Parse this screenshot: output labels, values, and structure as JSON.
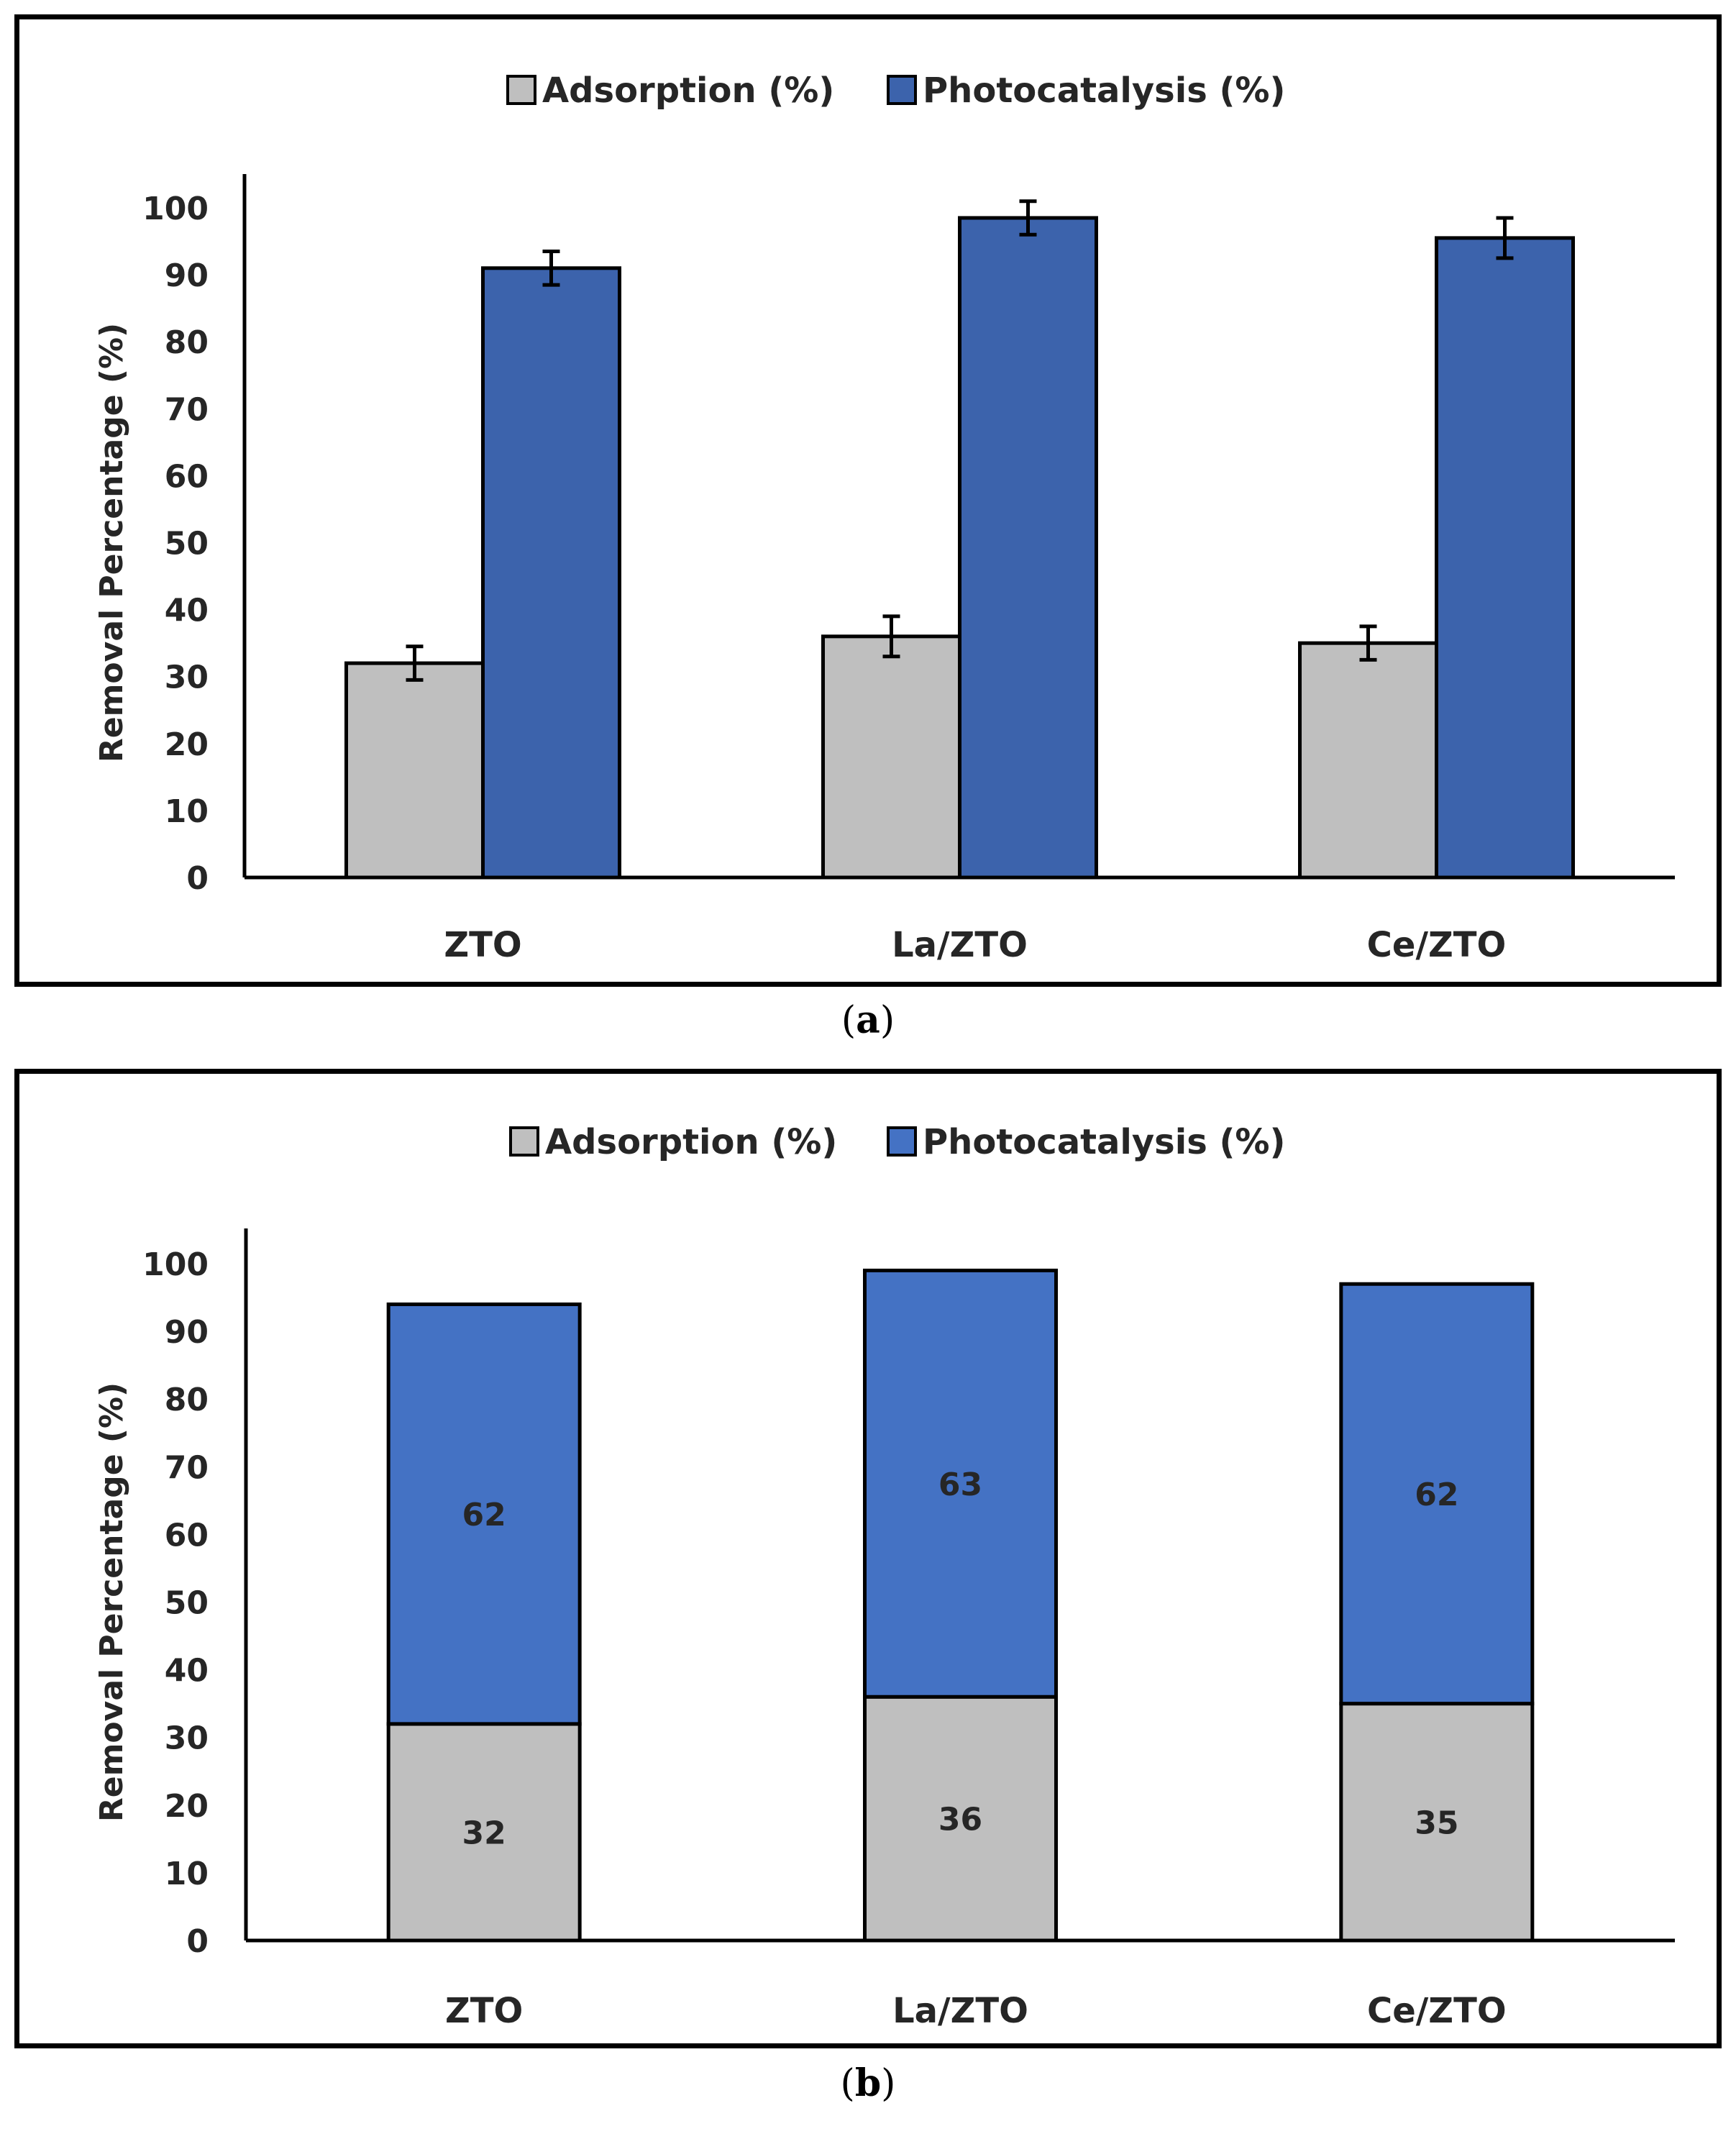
{
  "chart_data": [
    {
      "id": "a",
      "type": "bar",
      "mode": "grouped",
      "caption": "a",
      "categories": [
        "ZTO",
        "La/ZTO",
        "Ce/ZTO"
      ],
      "series": [
        {
          "name": "Adsorption (%)",
          "color": "#bfbfbf",
          "values": [
            32,
            36,
            35
          ],
          "errors": [
            2.5,
            3,
            2.5
          ]
        },
        {
          "name": "Photocatalysis (%)",
          "color": "#3c63ac",
          "values": [
            91,
            98.5,
            95.5
          ],
          "errors": [
            2.5,
            2.5,
            3
          ]
        }
      ],
      "ylabel": "Removal Percentage (%)",
      "xlabel": "",
      "ylim": [
        0,
        100
      ],
      "yticks": [
        0,
        10,
        20,
        30,
        40,
        50,
        60,
        70,
        80,
        90,
        100
      ],
      "legend": "top-center",
      "grid": false
    },
    {
      "id": "b",
      "type": "bar",
      "mode": "stacked",
      "caption": "b",
      "categories": [
        "ZTO",
        "La/ZTO",
        "Ce/ZTO"
      ],
      "series": [
        {
          "name": "Adsorption (%)",
          "color": "#bfbfbf",
          "values": [
            32,
            36,
            35
          ],
          "labels": [
            "32",
            "36",
            "35"
          ]
        },
        {
          "name": "Photocatalysis (%)",
          "color": "#4472c4",
          "values": [
            62,
            63,
            62
          ],
          "labels": [
            "62",
            "63",
            "62"
          ]
        }
      ],
      "ylabel": "Removal Percentage (%)",
      "xlabel": "",
      "ylim": [
        0,
        100
      ],
      "yticks": [
        0,
        10,
        20,
        30,
        40,
        50,
        60,
        70,
        80,
        90,
        100
      ],
      "legend": "top-center",
      "grid": false
    }
  ]
}
